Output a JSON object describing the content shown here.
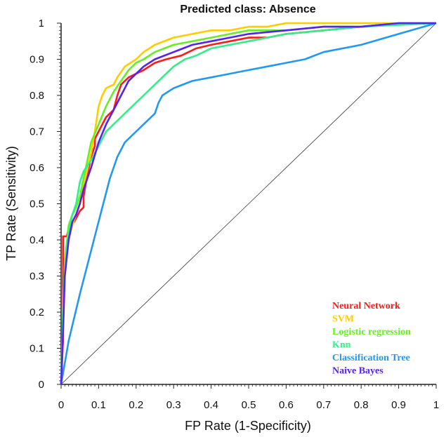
{
  "chart_data": {
    "type": "line",
    "title": "Predicted class: Absence",
    "xlabel": "FP Rate (1-Specificity)",
    "ylabel": "TP Rate (Sensitivity)",
    "xlim": [
      0,
      1
    ],
    "ylim": [
      0,
      1
    ],
    "xticks": [
      "0",
      "0.1",
      "0.2",
      "0.3",
      "0.4",
      "0.5",
      "0.6",
      "0.7",
      "0.8",
      "0.9",
      "1"
    ],
    "yticks": [
      "0",
      "0.1",
      "0.2",
      "0.3",
      "0.4",
      "0.5",
      "0.6",
      "0.7",
      "0.8",
      "0.9",
      "1"
    ],
    "legend_position": "bottom-right",
    "diagonal": {
      "name": "random classifier",
      "x": [
        0,
        1
      ],
      "y": [
        0,
        1
      ],
      "color": "#333333"
    },
    "series": [
      {
        "name": "Neural Network",
        "color": "#ff1a1a",
        "x": [
          0,
          0.005,
          0.005,
          0.015,
          0.02,
          0.025,
          0.035,
          0.04,
          0.05,
          0.06,
          0.06,
          0.07,
          0.08,
          0.09,
          0.09,
          0.1,
          0.11,
          0.12,
          0.14,
          0.15,
          0.16,
          0.18,
          0.2,
          0.22,
          0.25,
          0.28,
          0.32,
          0.36,
          0.4,
          0.45,
          0.5,
          0.55,
          0.6,
          0.7,
          0.8,
          0.9,
          1
        ],
        "y": [
          0,
          0.12,
          0.41,
          0.41,
          0.43,
          0.44,
          0.45,
          0.46,
          0.48,
          0.49,
          0.52,
          0.58,
          0.63,
          0.66,
          0.68,
          0.7,
          0.72,
          0.74,
          0.76,
          0.8,
          0.83,
          0.85,
          0.86,
          0.87,
          0.89,
          0.9,
          0.91,
          0.93,
          0.94,
          0.95,
          0.96,
          0.96,
          0.97,
          0.98,
          0.99,
          1,
          1
        ]
      },
      {
        "name": "SVM",
        "color": "#ffcc00",
        "x": [
          0,
          0.005,
          0.01,
          0.02,
          0.03,
          0.04,
          0.05,
          0.06,
          0.08,
          0.09,
          0.1,
          0.11,
          0.12,
          0.14,
          0.15,
          0.17,
          0.2,
          0.22,
          0.25,
          0.3,
          0.35,
          0.4,
          0.45,
          0.5,
          0.55,
          0.6,
          0.7,
          0.8,
          0.9,
          1
        ],
        "y": [
          0,
          0.15,
          0.33,
          0.4,
          0.44,
          0.47,
          0.5,
          0.55,
          0.64,
          0.7,
          0.77,
          0.8,
          0.82,
          0.83,
          0.85,
          0.88,
          0.9,
          0.92,
          0.94,
          0.96,
          0.97,
          0.98,
          0.98,
          0.99,
          0.99,
          1,
          1,
          1,
          1,
          1
        ]
      },
      {
        "name": "Logistic regression",
        "color": "#66ee22",
        "x": [
          0,
          0.005,
          0.01,
          0.02,
          0.03,
          0.04,
          0.05,
          0.06,
          0.07,
          0.08,
          0.1,
          0.12,
          0.14,
          0.16,
          0.18,
          0.2,
          0.22,
          0.25,
          0.3,
          0.35,
          0.4,
          0.45,
          0.5,
          0.6,
          0.7,
          0.8,
          0.9,
          1
        ],
        "y": [
          0,
          0.18,
          0.34,
          0.44,
          0.47,
          0.49,
          0.52,
          0.57,
          0.62,
          0.67,
          0.72,
          0.77,
          0.81,
          0.84,
          0.87,
          0.89,
          0.9,
          0.92,
          0.94,
          0.95,
          0.96,
          0.97,
          0.98,
          0.98,
          0.99,
          0.99,
          1,
          1
        ]
      },
      {
        "name": "Knn",
        "color": "#33ee88",
        "x": [
          0,
          0.005,
          0.01,
          0.02,
          0.03,
          0.04,
          0.05,
          0.06,
          0.08,
          0.1,
          0.12,
          0.14,
          0.16,
          0.18,
          0.2,
          0.22,
          0.24,
          0.26,
          0.28,
          0.3,
          0.33,
          0.36,
          0.4,
          0.45,
          0.5,
          0.55,
          0.6,
          0.7,
          0.8,
          0.9,
          1
        ],
        "y": [
          0,
          0.2,
          0.32,
          0.42,
          0.47,
          0.5,
          0.56,
          0.59,
          0.62,
          0.66,
          0.7,
          0.72,
          0.74,
          0.76,
          0.78,
          0.8,
          0.82,
          0.84,
          0.86,
          0.88,
          0.9,
          0.91,
          0.93,
          0.94,
          0.95,
          0.96,
          0.97,
          0.98,
          0.99,
          0.995,
          1
        ]
      },
      {
        "name": "Classification Tree",
        "color": "#2299ee",
        "x": [
          0,
          0.02,
          0.05,
          0.08,
          0.11,
          0.13,
          0.15,
          0.17,
          0.18,
          0.2,
          0.22,
          0.25,
          0.26,
          0.27,
          0.3,
          0.35,
          0.4,
          0.45,
          0.5,
          0.55,
          0.6,
          0.65,
          0.7,
          0.8,
          0.9,
          1
        ],
        "y": [
          0,
          0.12,
          0.25,
          0.37,
          0.49,
          0.57,
          0.63,
          0.67,
          0.68,
          0.7,
          0.72,
          0.75,
          0.78,
          0.8,
          0.82,
          0.84,
          0.85,
          0.86,
          0.87,
          0.88,
          0.89,
          0.9,
          0.92,
          0.94,
          0.97,
          1
        ]
      },
      {
        "name": "Naive Bayes",
        "color": "#5522ee",
        "x": [
          0,
          0.005,
          0.01,
          0.02,
          0.03,
          0.04,
          0.05,
          0.06,
          0.08,
          0.1,
          0.12,
          0.14,
          0.16,
          0.18,
          0.2,
          0.22,
          0.25,
          0.3,
          0.35,
          0.4,
          0.45,
          0.5,
          0.6,
          0.7,
          0.8,
          0.9,
          1
        ],
        "y": [
          0,
          0.14,
          0.3,
          0.4,
          0.45,
          0.47,
          0.5,
          0.54,
          0.6,
          0.67,
          0.72,
          0.76,
          0.8,
          0.84,
          0.86,
          0.88,
          0.9,
          0.92,
          0.94,
          0.95,
          0.96,
          0.97,
          0.98,
          0.99,
          0.99,
          1,
          1
        ]
      }
    ]
  }
}
